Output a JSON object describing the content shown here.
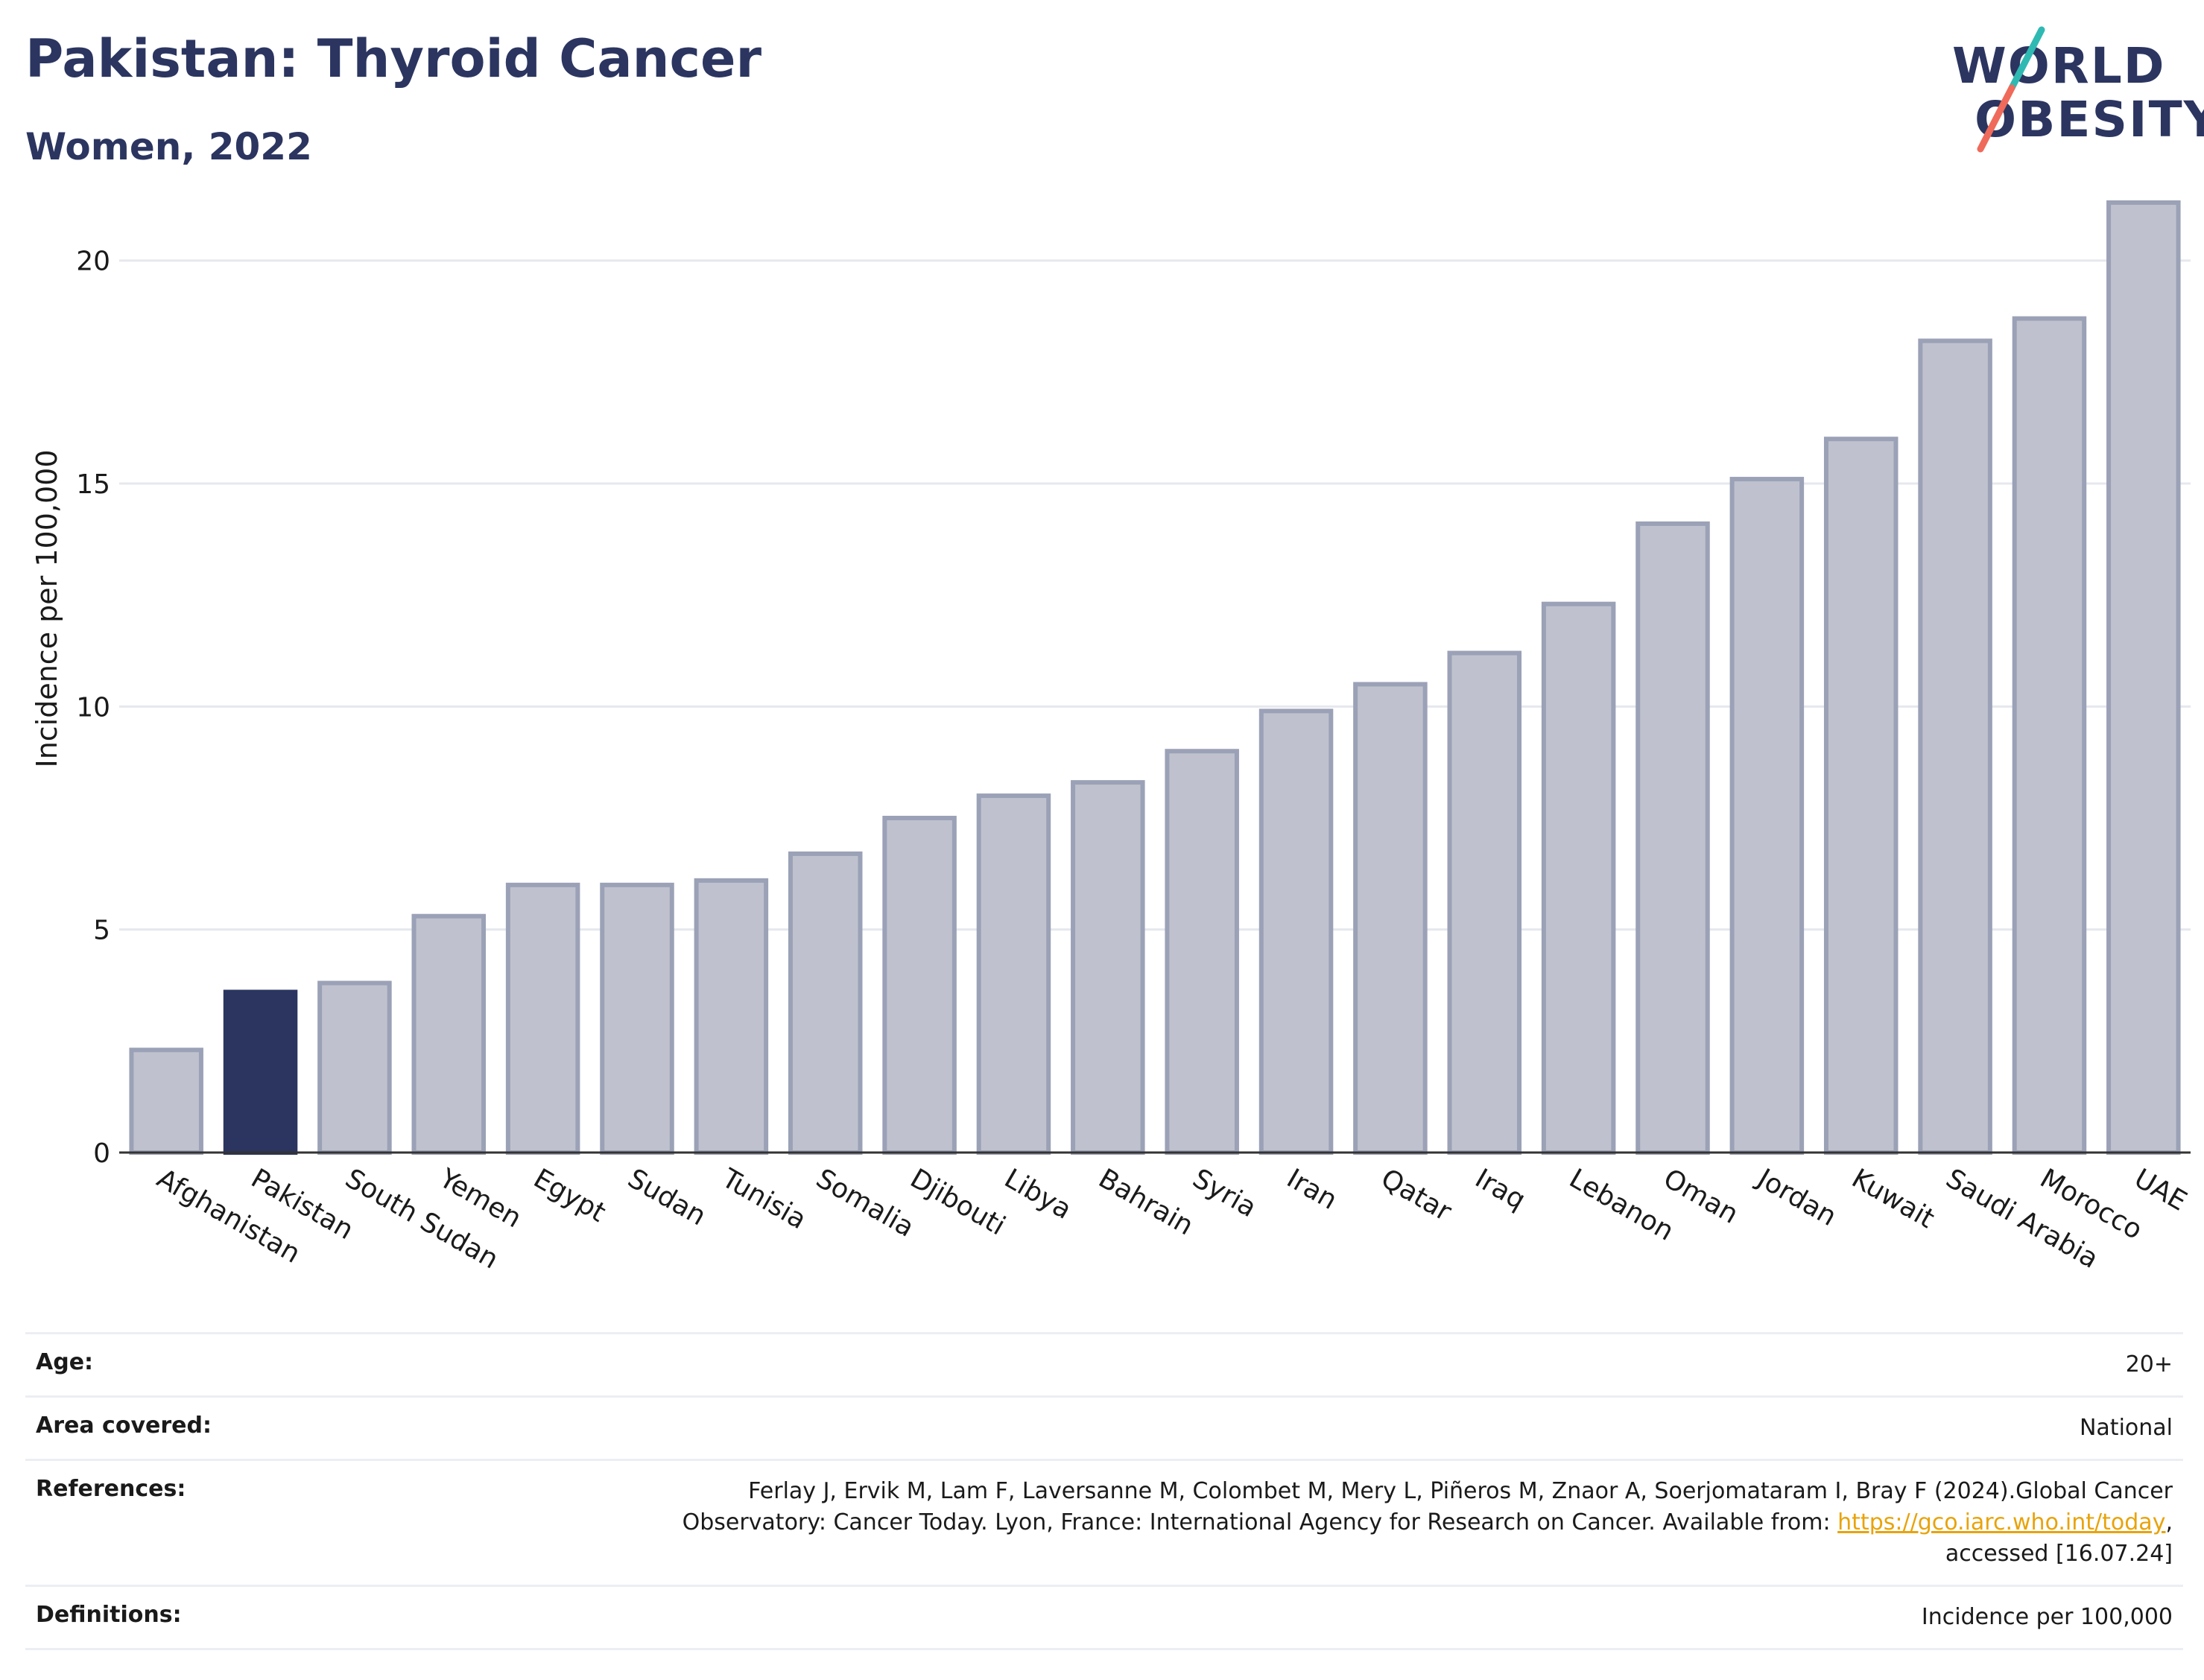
{
  "header": {
    "title": "Pakistan: Thyroid Cancer",
    "subtitle": "Women, 2022"
  },
  "logo": {
    "line1": "WORLD",
    "line2": "OBESITY",
    "accent_teal": "#2fb9b3",
    "accent_coral": "#ef6a5a"
  },
  "colors": {
    "highlight": "#2b3560",
    "bar_fill": "#bfc2ce",
    "bar_stroke": "#9ba1b6",
    "grid": "#e6e8ee",
    "axis": "#333333"
  },
  "chart_data": {
    "type": "bar",
    "title": "Pakistan: Thyroid Cancer",
    "subtitle": "Women, 2022",
    "ylabel": "Incidence per 100,000",
    "xlabel": "",
    "ylim": [
      0,
      22
    ],
    "yticks": [
      0,
      5,
      10,
      15,
      20
    ],
    "grid": true,
    "highlight": "Pakistan",
    "categories": [
      "Afghanistan",
      "Pakistan",
      "South Sudan",
      "Yemen",
      "Egypt",
      "Sudan",
      "Tunisia",
      "Somalia",
      "Djibouti",
      "Libya",
      "Bahrain",
      "Syria",
      "Iran",
      "Qatar",
      "Iraq",
      "Lebanon",
      "Oman",
      "Jordan",
      "Kuwait",
      "Saudi Arabia",
      "Morocco",
      "UAE"
    ],
    "values": [
      2.3,
      3.6,
      3.8,
      5.3,
      6.0,
      6.0,
      6.1,
      6.7,
      7.5,
      8.0,
      8.3,
      9.0,
      9.9,
      10.5,
      11.2,
      12.3,
      14.1,
      15.1,
      16.0,
      18.2,
      18.7,
      21.3
    ]
  },
  "info": {
    "age_label": "Age:",
    "age_value": "20+",
    "area_label": "Area covered:",
    "area_value": "National",
    "references_label": "References:",
    "references_text1": "Ferlay J, Ervik M, Lam F, Laversanne M, Colombet M, Mery L, Piñeros M, Znaor A, Soerjomataram I, Bray F (2024).Global Cancer",
    "references_text2": "Observatory: Cancer Today. Lyon, France: International Agency for Research on Cancer. Available from: ",
    "references_link": "https://gco.iarc.who.int/today",
    "references_text3": ",",
    "references_text4": "accessed [16.07.24]",
    "definitions_label": "Definitions:",
    "definitions_value": "Incidence per 100,000"
  }
}
